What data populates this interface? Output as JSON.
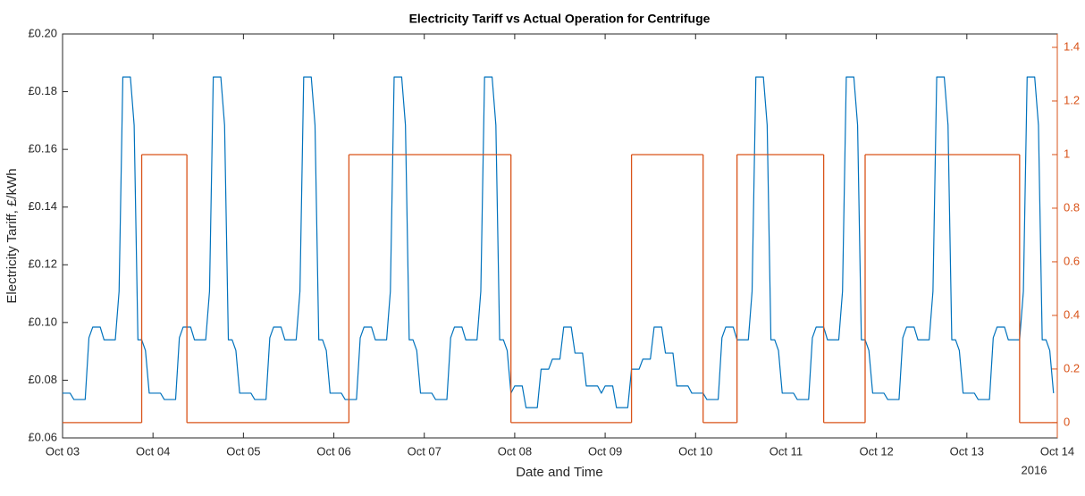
{
  "chart_data": {
    "type": "line",
    "title": "Electricity Tariff vs Actual Operation for Centrifuge",
    "x_label": "Date and Time",
    "y_label": "Electricity Tariff, £/kWh",
    "x_annotation": "2016",
    "xlim": [
      0,
      264
    ],
    "xticks": [
      {
        "value": 0,
        "label": "Oct 03"
      },
      {
        "value": 24,
        "label": "Oct 04"
      },
      {
        "value": 48,
        "label": "Oct 05"
      },
      {
        "value": 72,
        "label": "Oct 06"
      },
      {
        "value": 96,
        "label": "Oct 07"
      },
      {
        "value": 120,
        "label": "Oct 08"
      },
      {
        "value": 144,
        "label": "Oct 09"
      },
      {
        "value": 168,
        "label": "Oct 10"
      },
      {
        "value": 192,
        "label": "Oct 11"
      },
      {
        "value": 216,
        "label": "Oct 12"
      },
      {
        "value": 240,
        "label": "Oct 13"
      },
      {
        "value": 264,
        "label": "Oct 14"
      }
    ],
    "ylim": [
      0.06,
      0.2
    ],
    "yticks": [
      {
        "value": 0.06,
        "label": "£0.06"
      },
      {
        "value": 0.08,
        "label": "£0.08"
      },
      {
        "value": 0.1,
        "label": "£0.10"
      },
      {
        "value": 0.12,
        "label": "£0.12"
      },
      {
        "value": 0.14,
        "label": "£0.14"
      },
      {
        "value": 0.16,
        "label": "£0.16"
      },
      {
        "value": 0.18,
        "label": "£0.18"
      },
      {
        "value": 0.2,
        "label": "£0.20"
      }
    ],
    "y2lim": [
      -0.057,
      1.45
    ],
    "y2ticks": [
      0,
      0.2,
      0.4,
      0.6,
      0.8,
      1,
      1.2,
      1.4
    ],
    "y2_color": "#d95319",
    "grid": false,
    "series": [
      {
        "color": "#0072bd",
        "x": [
          0,
          1,
          2,
          3,
          4,
          5,
          6,
          7,
          8,
          9,
          10,
          11,
          12,
          13,
          14,
          15,
          16,
          17,
          18,
          19,
          20,
          21,
          22,
          23,
          24,
          25,
          26,
          27,
          28,
          29,
          30,
          31,
          32,
          33,
          34,
          35,
          36,
          37,
          38,
          39,
          40,
          41,
          42,
          43,
          44,
          45,
          46,
          47,
          48,
          49,
          50,
          51,
          52,
          53,
          54,
          55,
          56,
          57,
          58,
          59,
          60,
          61,
          62,
          63,
          64,
          65,
          66,
          67,
          68,
          69,
          70,
          71,
          72,
          73,
          74,
          75,
          76,
          77,
          78,
          79,
          80,
          81,
          82,
          83,
          84,
          85,
          86,
          87,
          88,
          89,
          90,
          91,
          92,
          93,
          94,
          95,
          96,
          97,
          98,
          99,
          100,
          101,
          102,
          103,
          104,
          105,
          106,
          107,
          108,
          109,
          110,
          111,
          112,
          113,
          114,
          115,
          116,
          117,
          118,
          119,
          120,
          121,
          122,
          123,
          124,
          125,
          126,
          127,
          128,
          129,
          130,
          131,
          132,
          133,
          134,
          135,
          136,
          137,
          138,
          139,
          140,
          141,
          142,
          143,
          144,
          145,
          146,
          147,
          148,
          149,
          150,
          151,
          152,
          153,
          154,
          155,
          156,
          157,
          158,
          159,
          160,
          161,
          162,
          163,
          164,
          165,
          166,
          167,
          168,
          169,
          170,
          171,
          172,
          173,
          174,
          175,
          176,
          177,
          178,
          179,
          180,
          181,
          182,
          183,
          184,
          185,
          186,
          187,
          188,
          189,
          190,
          191,
          192,
          193,
          194,
          195,
          196,
          197,
          198,
          199,
          200,
          201,
          202,
          203,
          204,
          205,
          206,
          207,
          208,
          209,
          210,
          211,
          212,
          213,
          214,
          215,
          216,
          217,
          218,
          219,
          220,
          221,
          222,
          223,
          224,
          225,
          226,
          227,
          228,
          229,
          230,
          231,
          232,
          233,
          234,
          235,
          236,
          237,
          238,
          239,
          240,
          241,
          242,
          243,
          244,
          245,
          246,
          247,
          248,
          249,
          250,
          251,
          252,
          253,
          254,
          255,
          256,
          257,
          258,
          259,
          260,
          261,
          262,
          263
        ],
        "values": [
          0.0755,
          0.0755,
          0.0755,
          0.0733,
          0.0733,
          0.0733,
          0.0733,
          0.0947,
          0.0984,
          0.0984,
          0.0984,
          0.094,
          0.094,
          0.094,
          0.094,
          0.1108,
          0.1851,
          0.1851,
          0.1851,
          0.1684,
          0.094,
          0.094,
          0.0903,
          0.0755,
          0.0755,
          0.0755,
          0.0755,
          0.0733,
          0.0733,
          0.0733,
          0.0733,
          0.0947,
          0.0984,
          0.0984,
          0.0984,
          0.094,
          0.094,
          0.094,
          0.094,
          0.1108,
          0.1851,
          0.1851,
          0.1851,
          0.1684,
          0.094,
          0.094,
          0.0903,
          0.0755,
          0.0755,
          0.0755,
          0.0755,
          0.0733,
          0.0733,
          0.0733,
          0.0733,
          0.0947,
          0.0984,
          0.0984,
          0.0984,
          0.094,
          0.094,
          0.094,
          0.094,
          0.1108,
          0.1851,
          0.1851,
          0.1851,
          0.1684,
          0.094,
          0.094,
          0.0903,
          0.0755,
          0.0755,
          0.0755,
          0.0755,
          0.0733,
          0.0733,
          0.0733,
          0.0733,
          0.0947,
          0.0984,
          0.0984,
          0.0984,
          0.094,
          0.094,
          0.094,
          0.094,
          0.1108,
          0.1851,
          0.1851,
          0.1851,
          0.1684,
          0.094,
          0.094,
          0.0903,
          0.0755,
          0.0755,
          0.0755,
          0.0755,
          0.0733,
          0.0733,
          0.0733,
          0.0733,
          0.0947,
          0.0984,
          0.0984,
          0.0984,
          0.094,
          0.094,
          0.094,
          0.094,
          0.1108,
          0.1851,
          0.1851,
          0.1851,
          0.1684,
          0.094,
          0.094,
          0.0903,
          0.0755,
          0.078,
          0.078,
          0.078,
          0.0705,
          0.0705,
          0.0705,
          0.0705,
          0.0838,
          0.0838,
          0.0838,
          0.0873,
          0.0873,
          0.0873,
          0.0984,
          0.0984,
          0.0984,
          0.0894,
          0.0894,
          0.0894,
          0.078,
          0.078,
          0.078,
          0.078,
          0.0755,
          0.078,
          0.078,
          0.078,
          0.0705,
          0.0705,
          0.0705,
          0.0705,
          0.0838,
          0.0838,
          0.0838,
          0.0873,
          0.0873,
          0.0873,
          0.0984,
          0.0984,
          0.0984,
          0.0894,
          0.0894,
          0.0894,
          0.078,
          0.078,
          0.078,
          0.078,
          0.0755,
          0.0755,
          0.0755,
          0.0755,
          0.0733,
          0.0733,
          0.0733,
          0.0733,
          0.0947,
          0.0984,
          0.0984,
          0.0984,
          0.094,
          0.094,
          0.094,
          0.094,
          0.1108,
          0.1851,
          0.1851,
          0.1851,
          0.1684,
          0.094,
          0.094,
          0.0903,
          0.0755,
          0.0755,
          0.0755,
          0.0755,
          0.0733,
          0.0733,
          0.0733,
          0.0733,
          0.0947,
          0.0984,
          0.0984,
          0.0984,
          0.094,
          0.094,
          0.094,
          0.094,
          0.1108,
          0.1851,
          0.1851,
          0.1851,
          0.1684,
          0.094,
          0.094,
          0.0903,
          0.0755,
          0.0755,
          0.0755,
          0.0755,
          0.0733,
          0.0733,
          0.0733,
          0.0733,
          0.0947,
          0.0984,
          0.0984,
          0.0984,
          0.094,
          0.094,
          0.094,
          0.094,
          0.1108,
          0.1851,
          0.1851,
          0.1851,
          0.1684,
          0.094,
          0.094,
          0.0903,
          0.0755,
          0.0755,
          0.0755,
          0.0755,
          0.0733,
          0.0733,
          0.0733,
          0.0733,
          0.0947,
          0.0984,
          0.0984,
          0.0984,
          0.094,
          0.094,
          0.094,
          0.094,
          0.1108,
          0.1851,
          0.1851,
          0.1851,
          0.1684,
          0.094,
          0.094,
          0.0903,
          0.0755
        ]
      },
      {
        "color": "#d95319",
        "axis": "y2",
        "step": "post",
        "x": [
          0,
          21,
          33,
          76,
          119,
          151,
          170,
          179,
          202,
          213,
          254
        ],
        "values": [
          0,
          1,
          0,
          1,
          0,
          1,
          0,
          1,
          0,
          1,
          0
        ]
      }
    ]
  }
}
